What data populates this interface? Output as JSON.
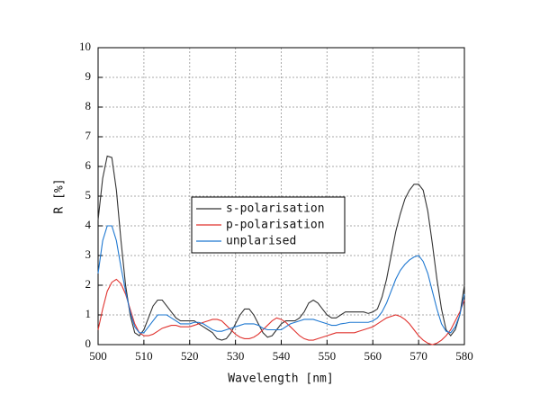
{
  "chart_data": {
    "type": "line",
    "xlabel": "Wavelength [nm]",
    "ylabel": "R [%]",
    "xlim": [
      500,
      580
    ],
    "xticks": [
      500,
      510,
      520,
      530,
      540,
      550,
      560,
      570,
      580
    ],
    "ylim": [
      0,
      10
    ],
    "yticks": [
      0,
      1,
      2,
      3,
      4,
      5,
      6,
      7,
      8,
      9,
      10
    ],
    "grid": true,
    "legend": "center",
    "x": [
      500,
      501,
      502,
      503,
      504,
      505,
      506,
      507,
      508,
      509,
      510,
      511,
      512,
      513,
      514,
      515,
      516,
      517,
      518,
      519,
      520,
      521,
      522,
      523,
      524,
      525,
      526,
      527,
      528,
      529,
      530,
      531,
      532,
      533,
      534,
      535,
      536,
      537,
      538,
      539,
      540,
      541,
      542,
      543,
      544,
      545,
      546,
      547,
      548,
      549,
      550,
      551,
      552,
      553,
      554,
      555,
      556,
      557,
      558,
      559,
      560,
      561,
      562,
      563,
      564,
      565,
      566,
      567,
      568,
      569,
      570,
      571,
      572,
      573,
      574,
      575,
      576,
      577,
      578,
      579,
      580
    ],
    "series": [
      {
        "name": "s-polarisation",
        "color": "#333333",
        "values": [
          4.2,
          5.6,
          6.35,
          6.3,
          5.2,
          3.5,
          2.0,
          1.0,
          0.4,
          0.3,
          0.5,
          0.9,
          1.3,
          1.5,
          1.5,
          1.3,
          1.1,
          0.9,
          0.8,
          0.8,
          0.8,
          0.8,
          0.7,
          0.6,
          0.5,
          0.4,
          0.2,
          0.15,
          0.2,
          0.4,
          0.7,
          1.0,
          1.2,
          1.2,
          1.0,
          0.7,
          0.4,
          0.25,
          0.3,
          0.5,
          0.7,
          0.8,
          0.8,
          0.8,
          0.9,
          1.1,
          1.4,
          1.5,
          1.4,
          1.2,
          1.0,
          0.9,
          0.9,
          1.0,
          1.1,
          1.1,
          1.1,
          1.1,
          1.1,
          1.05,
          1.1,
          1.2,
          1.6,
          2.2,
          3.0,
          3.8,
          4.4,
          4.9,
          5.2,
          5.4,
          5.4,
          5.2,
          4.5,
          3.4,
          2.2,
          1.2,
          0.5,
          0.3,
          0.5,
          1.0,
          2.0
        ]
      },
      {
        "name": "p-polarisation",
        "color": "#e0332f",
        "values": [
          0.5,
          1.2,
          1.8,
          2.1,
          2.2,
          2.05,
          1.7,
          1.2,
          0.7,
          0.4,
          0.3,
          0.3,
          0.35,
          0.45,
          0.55,
          0.6,
          0.65,
          0.65,
          0.6,
          0.6,
          0.6,
          0.65,
          0.7,
          0.75,
          0.8,
          0.85,
          0.85,
          0.8,
          0.65,
          0.5,
          0.35,
          0.25,
          0.2,
          0.2,
          0.25,
          0.35,
          0.5,
          0.65,
          0.8,
          0.9,
          0.85,
          0.75,
          0.6,
          0.45,
          0.3,
          0.2,
          0.15,
          0.15,
          0.2,
          0.25,
          0.3,
          0.35,
          0.4,
          0.4,
          0.4,
          0.4,
          0.4,
          0.45,
          0.5,
          0.55,
          0.6,
          0.7,
          0.8,
          0.9,
          0.95,
          1.0,
          0.95,
          0.85,
          0.7,
          0.5,
          0.3,
          0.15,
          0.05,
          0,
          0.05,
          0.15,
          0.3,
          0.5,
          0.8,
          1.1,
          1.5
        ]
      },
      {
        "name": "unplarised",
        "color": "#1f78d1",
        "values": [
          2.4,
          3.5,
          4.0,
          4.0,
          3.5,
          2.6,
          1.8,
          1.1,
          0.6,
          0.4,
          0.4,
          0.6,
          0.8,
          1.0,
          1.0,
          1.0,
          0.9,
          0.8,
          0.7,
          0.7,
          0.7,
          0.75,
          0.75,
          0.7,
          0.6,
          0.5,
          0.45,
          0.45,
          0.5,
          0.55,
          0.6,
          0.65,
          0.7,
          0.7,
          0.7,
          0.65,
          0.55,
          0.5,
          0.5,
          0.5,
          0.5,
          0.6,
          0.7,
          0.75,
          0.8,
          0.85,
          0.85,
          0.85,
          0.8,
          0.75,
          0.7,
          0.65,
          0.65,
          0.7,
          0.72,
          0.75,
          0.75,
          0.75,
          0.75,
          0.75,
          0.8,
          0.9,
          1.1,
          1.4,
          1.8,
          2.2,
          2.5,
          2.7,
          2.85,
          2.95,
          3.0,
          2.8,
          2.4,
          1.8,
          1.2,
          0.7,
          0.45,
          0.4,
          0.6,
          1.0,
          1.7
        ]
      }
    ]
  }
}
